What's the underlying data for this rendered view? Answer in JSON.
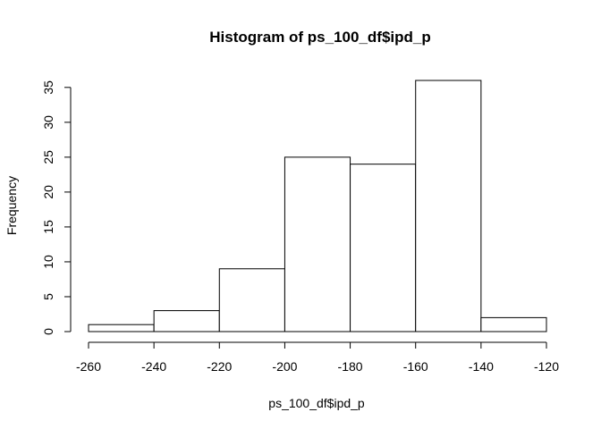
{
  "chart_data": {
    "type": "bar",
    "title": "Histogram of ps_100_df$ipd_p",
    "xlabel": "ps_100_df$ipd_p",
    "ylabel": "Frequency",
    "bins": [
      {
        "from": -260,
        "to": -240,
        "count": 1
      },
      {
        "from": -240,
        "to": -220,
        "count": 3
      },
      {
        "from": -220,
        "to": -200,
        "count": 9
      },
      {
        "from": -200,
        "to": -180,
        "count": 25
      },
      {
        "from": -180,
        "to": -160,
        "count": 24
      },
      {
        "from": -160,
        "to": -140,
        "count": 36
      },
      {
        "from": -140,
        "to": -120,
        "count": 2
      }
    ],
    "xlim": [
      -260,
      -120
    ],
    "ylim": [
      0,
      36
    ],
    "x_ticks": [
      -260,
      -240,
      -220,
      -200,
      -180,
      -160,
      -140,
      -120
    ],
    "x_tick_labels": [
      "-260",
      "-240",
      "-220",
      "-200",
      "-180",
      "-160",
      "-140",
      "-120"
    ],
    "y_ticks": [
      0,
      5,
      10,
      15,
      20,
      25,
      30,
      35
    ],
    "y_tick_labels": [
      "0",
      "5",
      "10",
      "15",
      "20",
      "25",
      "30",
      "35"
    ],
    "grid": false,
    "bar_fill": "#ffffff",
    "bar_stroke": "#000000"
  }
}
